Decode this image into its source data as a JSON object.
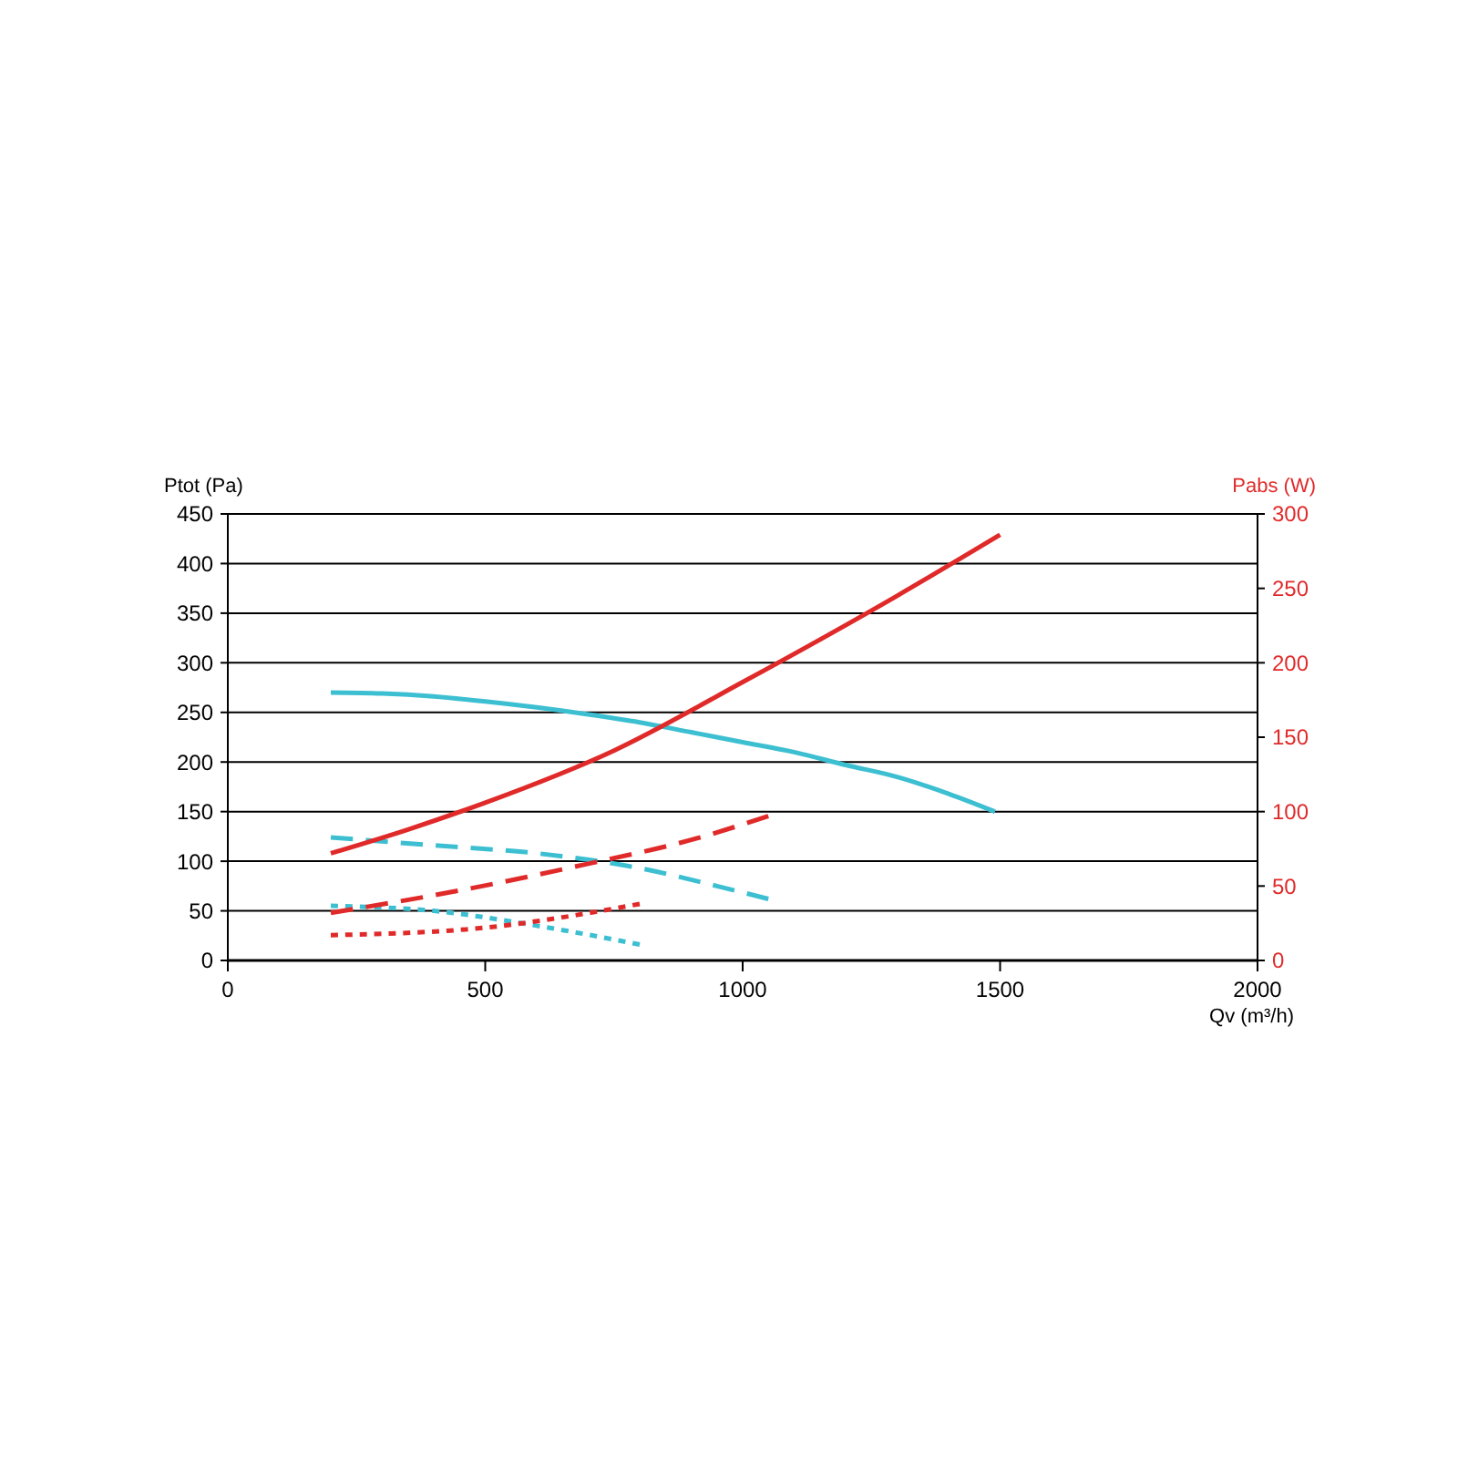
{
  "chart_data": {
    "type": "line",
    "ylabel": "Ptot (Pa)",
    "y2label": "Pabs (W)",
    "xlabel": "Qv (m³/h)",
    "xlim": [
      0,
      2000
    ],
    "xticks": [
      0,
      500,
      1000,
      1500,
      2000
    ],
    "ylim": [
      0,
      450
    ],
    "yticks": [
      0,
      50,
      100,
      150,
      200,
      250,
      300,
      350,
      400,
      450
    ],
    "y2lim": [
      0,
      300
    ],
    "y2ticks": [
      0,
      50,
      100,
      150,
      200,
      250,
      300
    ],
    "grid": "y",
    "marker": "none",
    "series": [
      {
        "color": "#3dbfd2",
        "line_style": "solid",
        "x": [
          200,
          300,
          400,
          500,
          600,
          700,
          800,
          900,
          1000,
          1100,
          1200,
          1300,
          1400,
          1490
        ],
        "values": [
          270,
          269,
          266,
          261,
          255,
          248,
          240,
          230,
          220,
          210,
          197,
          185,
          168,
          150
        ]
      },
      {
        "color": "#3dbfd2",
        "line_style": "dashed",
        "x": [
          200,
          400,
          600,
          800,
          950,
          1050
        ],
        "values": [
          124,
          116,
          108,
          93,
          75,
          62
        ]
      },
      {
        "color": "#3dbfd2",
        "line_style": "dotted",
        "x": [
          200,
          400,
          600,
          700,
          800
        ],
        "values": [
          55,
          50,
          35,
          26,
          16
        ]
      },
      {
        "color": "#e02a2a",
        "line_style": "solid",
        "axis": "y2",
        "x": [
          200,
          350,
          500,
          750,
          1000,
          1300,
          1500
        ],
        "values": [
          72,
          88,
          106,
          141,
          187,
          245,
          286
        ]
      },
      {
        "color": "#e02a2a",
        "line_style": "dashed",
        "axis": "y2",
        "x": [
          200,
          450,
          700,
          900,
          1050
        ],
        "values": [
          32,
          47,
          65,
          81,
          97
        ]
      },
      {
        "color": "#e02a2a",
        "line_style": "dotted",
        "axis": "y2",
        "x": [
          200,
          500,
          650,
          800
        ],
        "values": [
          17,
          22,
          29,
          38
        ]
      }
    ]
  }
}
